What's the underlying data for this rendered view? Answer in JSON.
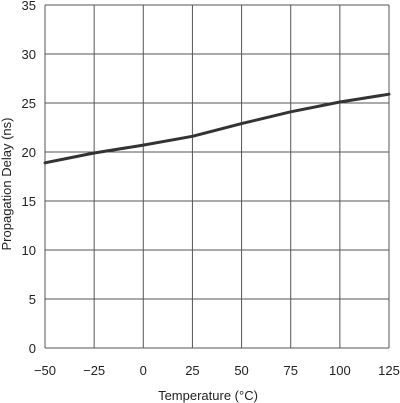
{
  "chart_data": {
    "type": "line",
    "title": "",
    "xlabel": "Temperature (°C)",
    "ylabel": "Propagation Delay (ns)",
    "xlim": [
      -50,
      125
    ],
    "ylim": [
      0,
      35
    ],
    "x_ticks": [
      -50,
      -25,
      0,
      25,
      50,
      75,
      100,
      125
    ],
    "y_ticks": [
      0,
      5,
      10,
      15,
      20,
      25,
      30,
      35
    ],
    "x_tick_labels": [
      "−50",
      "−25",
      "0",
      "25",
      "50",
      "75",
      "100",
      "125"
    ],
    "y_tick_labels": [
      "0",
      "5",
      "10",
      "15",
      "20",
      "25",
      "30",
      "35"
    ],
    "grid": true,
    "legend": "none",
    "series": [
      {
        "x": [
          -50,
          -40,
          -25,
          0,
          25,
          50,
          75,
          100,
          125
        ],
        "y": [
          18.9,
          19.3,
          19.9,
          20.7,
          21.6,
          22.9,
          24.1,
          25.1,
          25.9
        ]
      }
    ],
    "colors": {
      "line": "#333333",
      "grid": "#555555",
      "text": "#222222"
    }
  }
}
